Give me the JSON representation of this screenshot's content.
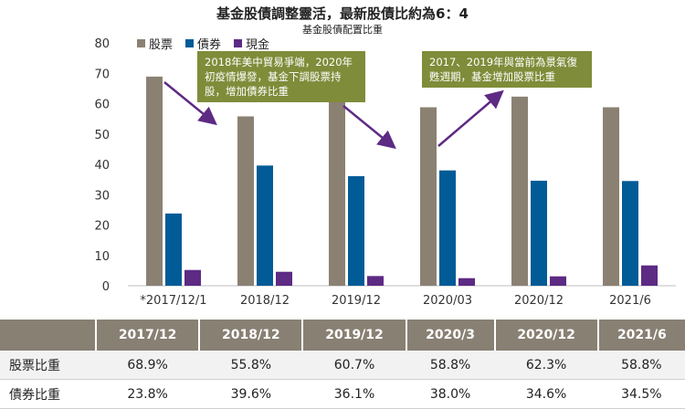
{
  "chart_data": {
    "type": "bar",
    "title": "基金股債調整靈活，最新股債比約為6：4",
    "subtitle": "基金股債配置比重",
    "categories": [
      "*2017/12/1",
      "2018/12",
      "2019/12",
      "2020/03",
      "2020/12",
      "2021/6"
    ],
    "series": [
      {
        "name": "股票",
        "color": "#8b8173",
        "values": [
          68.9,
          55.8,
          60.7,
          58.8,
          62.3,
          58.8
        ]
      },
      {
        "name": "債券",
        "color": "#005b96",
        "values": [
          23.8,
          39.6,
          36.1,
          38.0,
          34.6,
          34.5
        ]
      },
      {
        "name": "現金",
        "color": "#5d2a84",
        "values": [
          5.2,
          4.6,
          3.2,
          2.5,
          3.1,
          6.7
        ]
      }
    ],
    "ylim": [
      0,
      80
    ],
    "yticks": [
      0,
      10,
      20,
      30,
      40,
      50,
      60,
      70,
      80
    ],
    "legend_position": "top-left",
    "annotations": [
      "2018年美中貿易爭端，2020年初疫情爆發，基金下調股票持股，增加債券比重",
      "2017、2019年與當前為景氣復甦週期，基金增加股票比重"
    ]
  },
  "colors": {
    "note_bg": "#7f8c39",
    "arrow": "#5d2a84",
    "table_header": "#888073"
  },
  "table": {
    "columns": [
      "",
      "2017/12",
      "2018/12",
      "2019/12",
      "2020/3",
      "2020/12",
      "2021/6"
    ],
    "rows": [
      {
        "label": "股票比重",
        "values": [
          "68.9%",
          "55.8%",
          "60.7%",
          "58.8%",
          "62.3%",
          "58.8%"
        ]
      },
      {
        "label": "債券比重",
        "values": [
          "23.8%",
          "39.6%",
          "36.1%",
          "38.0%",
          "34.6%",
          "34.5%"
        ]
      }
    ]
  }
}
